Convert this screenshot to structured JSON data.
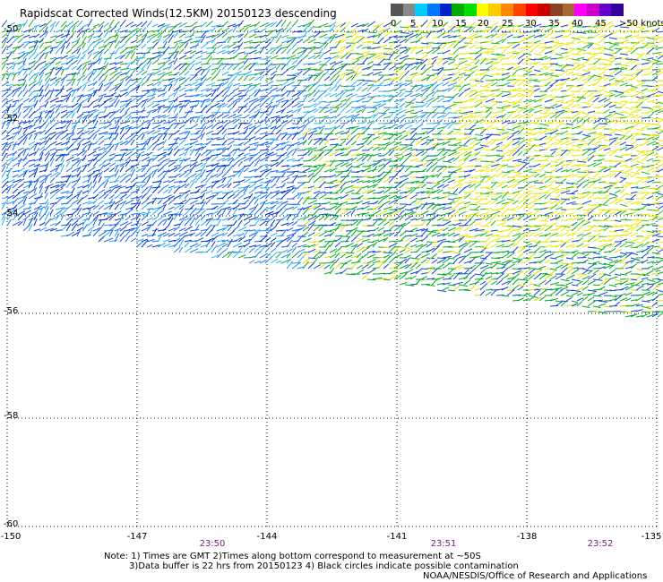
{
  "title": "Rapidscat Corrected Winds(12.5KM) 20150123 descending",
  "legend": {
    "labels": [
      "0",
      "5",
      "10",
      "15",
      "20",
      "25",
      "30",
      "35",
      "40",
      "45"
    ],
    "unit_label": ">50 knots",
    "colors": [
      "#555555",
      "#888888",
      "#00ccff",
      "#0077ff",
      "#0022cc",
      "#00aa00",
      "#00dd00",
      "#ffff00",
      "#ffcc00",
      "#ff8800",
      "#ff4400",
      "#ff0000",
      "#cc0000",
      "#884422",
      "#aa6633",
      "#ff00ff",
      "#cc00cc",
      "#6600cc",
      "#330099"
    ]
  },
  "map": {
    "lat_labels": [
      "-50",
      "-52",
      "-54",
      "-56",
      "-58",
      "-60"
    ],
    "lon_labels": [
      "-150",
      "-147",
      "-144",
      "-141",
      "-138",
      "-135"
    ],
    "time_labels": [
      "23:50",
      "23:51",
      "23:52"
    ]
  },
  "notes": {
    "line1": "Note: 1) Times are GMT 2)Times along bottom correspond to measurement at ~50S",
    "line2": "3)Data buffer is 22 hrs from 20150123 4) Black circles indicate possible contamination",
    "credit": "NOAA/NESDIS/Office of Research and Applications"
  }
}
